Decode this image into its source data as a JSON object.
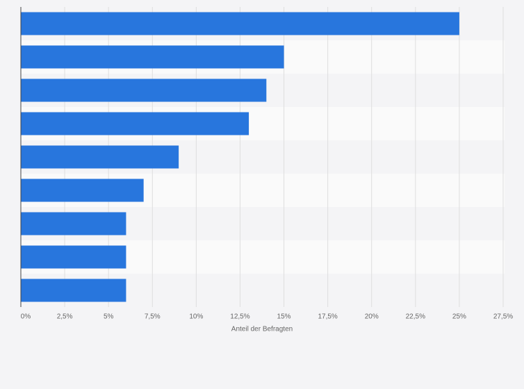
{
  "chart_data": {
    "type": "bar",
    "orientation": "horizontal",
    "categories": [
      null,
      null,
      null,
      null,
      null,
      null,
      null,
      null,
      null
    ],
    "values": [
      25,
      15,
      14,
      13,
      9,
      7,
      6,
      6,
      6
    ],
    "color": "#2876dd",
    "xlabel": "Anteil der Befragten",
    "xlim": [
      0,
      27.5
    ],
    "xticks": [
      {
        "value": 0,
        "label": "0%"
      },
      {
        "value": 2.5,
        "label": "2,5%"
      },
      {
        "value": 5,
        "label": "5%"
      },
      {
        "value": 7.5,
        "label": "7,5%"
      },
      {
        "value": 10,
        "label": "10%"
      },
      {
        "value": 12.5,
        "label": "12,5%"
      },
      {
        "value": 15,
        "label": "15%"
      },
      {
        "value": 17.5,
        "label": "17,5%"
      },
      {
        "value": 20,
        "label": "20%"
      },
      {
        "value": 22.5,
        "label": "22,5%"
      },
      {
        "value": 25,
        "label": "25%"
      },
      {
        "value": 27.5,
        "label": "27,5%"
      }
    ],
    "grid": true
  }
}
